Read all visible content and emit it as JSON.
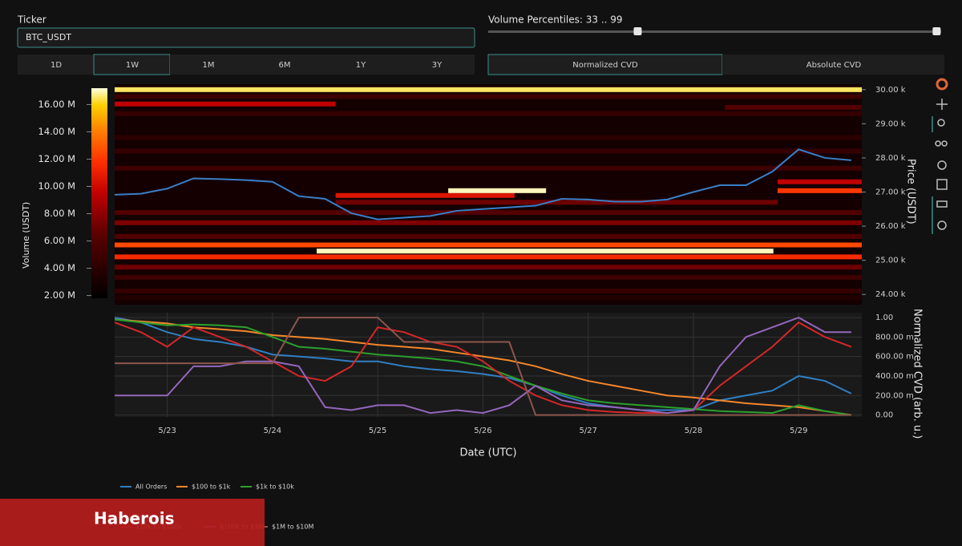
{
  "ui": {
    "ticker_label": "Ticker",
    "ticker_value": "BTC_USDT",
    "percentile_label": "Volume Percentiles: 33 .. 99",
    "percentile_low": 33,
    "percentile_high": 99,
    "ranges": [
      "1D",
      "1W",
      "1M",
      "6M",
      "1Y",
      "3Y"
    ],
    "range_selected": 1,
    "cvd_modes": [
      "Normalized CVD",
      "Absolute CVD"
    ],
    "cvd_selected": 0,
    "banner": "Haberois"
  },
  "chart_data": [
    {
      "type": "heatmap",
      "y_label": "Price (USDT)",
      "colorbar_label": "Volume (USDT)",
      "xlim": [
        22.5,
        29.6
      ],
      "ylim": [
        23700,
        30160
      ],
      "yticks": [
        {
          "value": 24000,
          "label": "24.00 k"
        },
        {
          "value": 25000,
          "label": "25.00 k"
        },
        {
          "value": 26000,
          "label": "26.00 k"
        },
        {
          "value": 27000,
          "label": "27.00 k"
        },
        {
          "value": 28000,
          "label": "28.00 k"
        },
        {
          "value": 29000,
          "label": "29.00 k"
        },
        {
          "value": 30000,
          "label": "30.00 k"
        }
      ],
      "colorbar_lim": [
        1800000,
        17200000
      ],
      "colorbar_ticks": [
        {
          "value": 2000000,
          "label": "2.00 M"
        },
        {
          "value": 4000000,
          "label": "4.00 M"
        },
        {
          "value": 6000000,
          "label": "6.00 M"
        },
        {
          "value": 8000000,
          "label": "8.00 M"
        },
        {
          "value": 10000000,
          "label": "10.00 M"
        },
        {
          "value": 12000000,
          "label": "12.00 M"
        },
        {
          "value": 14000000,
          "label": "14.00 M"
        },
        {
          "value": 16000000,
          "label": "16.00 M"
        }
      ],
      "bands": [
        {
          "price": 30000,
          "volume": 16500000,
          "start": 22.5,
          "end": 29.6
        },
        {
          "price": 29800,
          "volume": 5000000,
          "start": 22.5,
          "end": 29.6
        },
        {
          "price": 29580,
          "volume": 9500000,
          "start": 22.5,
          "end": 24.6
        },
        {
          "price": 29480,
          "volume": 6000000,
          "start": 28.3,
          "end": 29.6
        },
        {
          "price": 29300,
          "volume": 4500000,
          "start": 22.5,
          "end": 29.6
        },
        {
          "price": 28600,
          "volume": 4000000,
          "start": 22.5,
          "end": 29.6
        },
        {
          "price": 28200,
          "volume": 4500000,
          "start": 22.5,
          "end": 29.6
        },
        {
          "price": 27700,
          "volume": 5000000,
          "start": 22.5,
          "end": 29.6
        },
        {
          "price": 27300,
          "volume": 9500000,
          "start": 28.8,
          "end": 29.6
        },
        {
          "price": 27040,
          "volume": 12000000,
          "start": 28.8,
          "end": 29.6
        },
        {
          "price": 26900,
          "volume": 10500000,
          "start": 24.6,
          "end": 26.3
        },
        {
          "price": 26700,
          "volume": 7000000,
          "start": 24.6,
          "end": 28.8
        },
        {
          "price": 26400,
          "volume": 6000000,
          "start": 22.5,
          "end": 29.6
        },
        {
          "price": 26100,
          "volume": 7500000,
          "start": 22.5,
          "end": 29.6
        },
        {
          "price": 25700,
          "volume": 6000000,
          "start": 22.5,
          "end": 29.6
        },
        {
          "price": 25450,
          "volume": 12500000,
          "start": 22.5,
          "end": 29.6
        },
        {
          "price": 25100,
          "volume": 11500000,
          "start": 22.5,
          "end": 29.6
        },
        {
          "price": 24800,
          "volume": 7000000,
          "start": 22.5,
          "end": 29.6
        },
        {
          "price": 24500,
          "volume": 5000000,
          "start": 22.5,
          "end": 29.6
        },
        {
          "price": 24100,
          "volume": 4500000,
          "start": 22.5,
          "end": 29.6
        },
        {
          "price": 23900,
          "volume": 3500000,
          "start": 22.5,
          "end": 29.6
        },
        {
          "price": 27040,
          "volume": 17000000,
          "start": 25.67,
          "end": 26.6
        },
        {
          "price": 25270,
          "volume": 17000000,
          "start": 24.42,
          "end": 28.76
        }
      ],
      "price_color": "#3a7fc8",
      "x": [
        22.5,
        22.75,
        23,
        23.25,
        23.5,
        23.75,
        24,
        24.25,
        24.5,
        24.75,
        25,
        25.25,
        25.5,
        25.75,
        26,
        26.25,
        26.5,
        26.75,
        27,
        27.25,
        27.5,
        27.75,
        28,
        28.25,
        28.5,
        28.75,
        29,
        29.25,
        29.5
      ],
      "price": [
        26920,
        26950,
        27100,
        27400,
        27380,
        27350,
        27300,
        26880,
        26800,
        26380,
        26200,
        26250,
        26300,
        26450,
        26500,
        26550,
        26600,
        26800,
        26780,
        26720,
        26720,
        26780,
        27000,
        27200,
        27200,
        27600,
        28250,
        28000,
        27930
      ]
    },
    {
      "type": "line",
      "x_label": "Date (UTC)",
      "y_label": "Normalized CVD (arb. u.)",
      "xlim": [
        22.5,
        29.6
      ],
      "xticks": [
        {
          "value": 23,
          "label": "5/23"
        },
        {
          "value": 24,
          "label": "5/24"
        },
        {
          "value": 25,
          "label": "5/25"
        },
        {
          "value": 26,
          "label": "5/26"
        },
        {
          "value": 27,
          "label": "5/27"
        },
        {
          "value": 28,
          "label": "5/28"
        },
        {
          "value": 29,
          "label": "5/29"
        }
      ],
      "ylim": [
        -0.02,
        1.05
      ],
      "yticks": [
        {
          "value": 0,
          "label": "0.00"
        },
        {
          "value": 0.2,
          "label": "200.00 m"
        },
        {
          "value": 0.4,
          "label": "400.00 m"
        },
        {
          "value": 0.6,
          "label": "600.00 m"
        },
        {
          "value": 0.8,
          "label": "800.00 m"
        },
        {
          "value": 1,
          "label": "1.00"
        }
      ],
      "grid": true,
      "x": [
        22.5,
        22.75,
        23,
        23.25,
        23.5,
        23.75,
        24,
        24.25,
        24.5,
        24.75,
        25,
        25.25,
        25.5,
        25.75,
        26,
        26.25,
        26.5,
        26.75,
        27,
        27.25,
        27.5,
        27.75,
        28,
        28.25,
        28.5,
        28.75,
        29,
        29.25,
        29.5
      ],
      "series": [
        {
          "name": "All Orders",
          "color": "#2f7fc4",
          "values": [
            1.0,
            0.95,
            0.85,
            0.78,
            0.75,
            0.7,
            0.62,
            0.6,
            0.58,
            0.55,
            0.55,
            0.5,
            0.47,
            0.45,
            0.42,
            0.38,
            0.3,
            0.2,
            0.12,
            0.08,
            0.05,
            0.05,
            0.05,
            0.15,
            0.2,
            0.25,
            0.4,
            0.35,
            0.22
          ]
        },
        {
          "name": "$100 to $1k",
          "color": "#f5862a",
          "values": [
            0.98,
            0.96,
            0.94,
            0.9,
            0.88,
            0.86,
            0.82,
            0.8,
            0.78,
            0.75,
            0.72,
            0.7,
            0.68,
            0.64,
            0.6,
            0.56,
            0.5,
            0.42,
            0.35,
            0.3,
            0.25,
            0.2,
            0.18,
            0.15,
            0.12,
            0.1,
            0.08,
            0.04,
            0.0
          ]
        },
        {
          "name": "$1k to $10k",
          "color": "#2ca02c",
          "values": [
            0.98,
            0.95,
            0.92,
            0.93,
            0.92,
            0.9,
            0.8,
            0.7,
            0.68,
            0.65,
            0.62,
            0.6,
            0.58,
            0.55,
            0.5,
            0.4,
            0.3,
            0.22,
            0.15,
            0.12,
            0.1,
            0.08,
            0.06,
            0.04,
            0.03,
            0.02,
            0.1,
            0.04,
            0.0
          ]
        },
        {
          "name": "$10k to $100k",
          "color": "#d62728",
          "values": [
            0.95,
            0.85,
            0.7,
            0.9,
            0.8,
            0.7,
            0.55,
            0.4,
            0.35,
            0.5,
            0.9,
            0.85,
            0.75,
            0.7,
            0.55,
            0.35,
            0.2,
            0.1,
            0.05,
            0.03,
            0.02,
            0.02,
            0.05,
            0.3,
            0.5,
            0.7,
            0.95,
            0.8,
            0.7
          ]
        },
        {
          "name": "$100k to $1M",
          "color": "#9467bd",
          "values": [
            0.2,
            0.2,
            0.2,
            0.5,
            0.5,
            0.55,
            0.55,
            0.5,
            0.08,
            0.05,
            0.1,
            0.1,
            0.02,
            0.05,
            0.02,
            0.1,
            0.3,
            0.15,
            0.1,
            0.08,
            0.05,
            0.02,
            0.05,
            0.5,
            0.8,
            0.9,
            1.0,
            0.85,
            0.85
          ]
        },
        {
          "name": "$1M to $10M",
          "color": "#8c564b",
          "values": [
            0.53,
            0.53,
            0.53,
            0.53,
            0.53,
            0.53,
            0.53,
            1.0,
            1.0,
            1.0,
            1.0,
            0.75,
            0.75,
            0.75,
            0.75,
            0.75,
            0,
            0,
            0,
            0,
            0,
            0,
            0,
            0,
            0,
            0,
            0,
            0,
            0
          ]
        }
      ]
    }
  ]
}
